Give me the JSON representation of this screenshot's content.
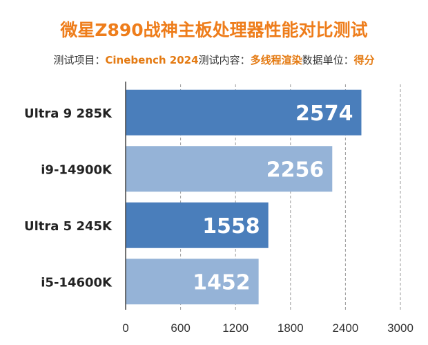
{
  "header": {
    "title": "微星Z890战神主板处理器性能对比测试",
    "item_label": "测试项目：",
    "item_value": "Cinebench 2024",
    "content_label": "测试内容：",
    "content_value": "多线程渲染",
    "unit_label": "数据单位：",
    "unit_value": "得分"
  },
  "colors": {
    "dark_bar": "#4a7ebb",
    "light_bar": "#95b3d7",
    "accent": "#ee7d1b"
  },
  "chart_data": {
    "type": "bar",
    "orientation": "horizontal",
    "title": "微星Z890战神主板处理器性能对比测试",
    "categories": [
      "Ultra 9 285K",
      "i9-14900K",
      "Ultra 5 245K",
      "i5-14600K"
    ],
    "values": [
      2574,
      2256,
      1558,
      1452
    ],
    "xlim": [
      0,
      3000
    ],
    "xticks": [
      "0",
      "600",
      "1200",
      "1800",
      "2400",
      "3000"
    ],
    "grid": "vertical-dashed",
    "data_labels": [
      "2574",
      "2256",
      "1558",
      "1452"
    ]
  }
}
